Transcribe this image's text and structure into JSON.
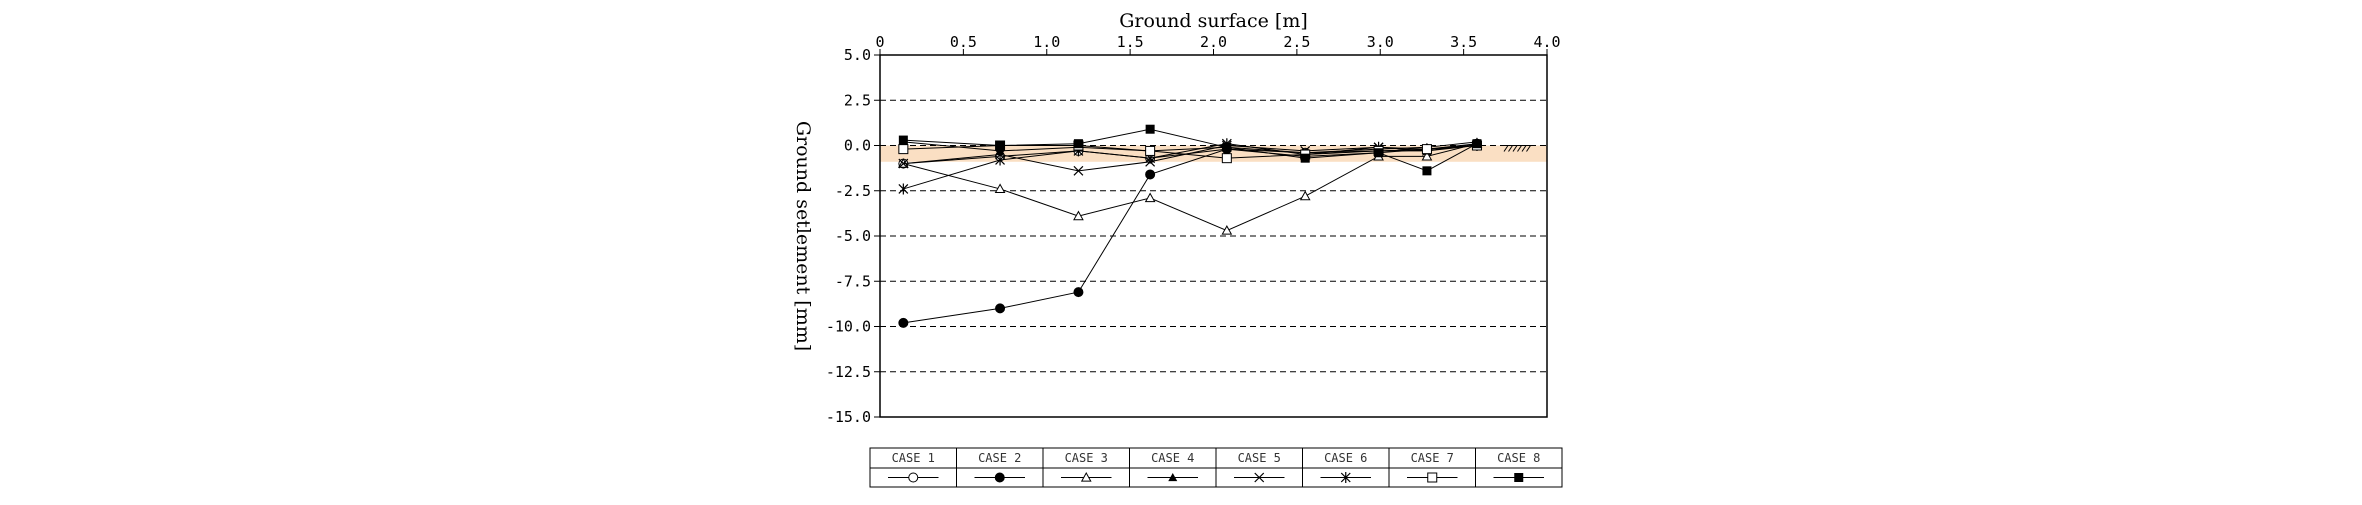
{
  "chart_data": {
    "type": "line",
    "xlabel": "Ground surface [m]",
    "ylabel": "Ground setlement [mm]",
    "xlim": [
      0,
      4.0
    ],
    "ylim": [
      -15.0,
      5.0
    ],
    "x_ticks": [
      "0",
      "0.5",
      "1.0",
      "1.5",
      "2.0",
      "2.5",
      "3.0",
      "3.5",
      "4.0"
    ],
    "y_ticks": [
      "5.0",
      "2.5",
      "0.0",
      "-2.5",
      "-5.0",
      "-7.5",
      "-10.0",
      "-12.5",
      "-15.0"
    ],
    "grid": "horizontal-dashed",
    "surface_fill": "#f9d9b8",
    "series": [
      {
        "name": "CASE 1",
        "marker": "open-circle",
        "x": [
          0.14,
          0.72,
          1.19,
          1.62,
          2.08,
          2.55,
          2.99,
          3.28,
          3.58
        ],
        "y": [
          -1.0,
          -0.6,
          -0.3,
          -0.7,
          -0.2,
          -0.4,
          -0.3,
          -0.3,
          0.1
        ]
      },
      {
        "name": "CASE 2",
        "marker": "filled-circle",
        "x": [
          0.14,
          0.72,
          1.19,
          1.62,
          2.08,
          2.55,
          2.99,
          3.28,
          3.58
        ],
        "y": [
          -9.8,
          -9.0,
          -8.1,
          -1.6,
          -0.2,
          -0.6,
          -0.4,
          -0.2,
          0.1
        ]
      },
      {
        "name": "CASE 3",
        "marker": "open-triangle",
        "x": [
          0.14,
          0.72,
          1.19,
          1.62,
          2.08,
          2.55,
          2.99,
          3.28,
          3.58
        ],
        "y": [
          -1.0,
          -2.4,
          -3.9,
          -2.9,
          -4.7,
          -2.8,
          -0.6,
          -0.6,
          0.1
        ]
      },
      {
        "name": "CASE 4",
        "marker": "filled-triangle",
        "x": [
          0.14,
          0.72,
          1.19,
          1.62,
          2.08,
          2.55,
          2.99,
          3.28,
          3.58
        ],
        "y": [
          0.2,
          -0.3,
          -0.1,
          -0.3,
          -0.1,
          -0.4,
          -0.2,
          -0.1,
          0.2
        ]
      },
      {
        "name": "CASE 5",
        "marker": "x",
        "x": [
          0.14,
          0.72,
          1.19,
          1.62,
          2.08,
          2.55,
          2.99,
          3.28,
          3.58
        ],
        "y": [
          -1.0,
          -0.5,
          -1.4,
          -0.9,
          0.0,
          -0.3,
          -0.1,
          -0.3,
          0.0
        ]
      },
      {
        "name": "CASE 6",
        "marker": "star",
        "x": [
          0.14,
          0.72,
          1.19,
          1.62,
          2.08,
          2.55,
          2.99,
          3.28,
          3.58
        ],
        "y": [
          -2.4,
          -0.8,
          -0.3,
          -0.7,
          0.1,
          -0.5,
          -0.1,
          -0.2,
          0.0
        ]
      },
      {
        "name": "CASE 7",
        "marker": "open-square",
        "x": [
          0.14,
          0.72,
          1.19,
          1.62,
          2.08,
          2.55,
          2.99,
          3.28,
          3.58
        ],
        "y": [
          -0.2,
          0.0,
          0.0,
          -0.3,
          -0.7,
          -0.5,
          -0.3,
          -0.2,
          0.0
        ]
      },
      {
        "name": "CASE 8",
        "marker": "filled-square",
        "x": [
          0.14,
          0.72,
          1.19,
          1.62,
          2.08,
          2.55,
          2.99,
          3.28,
          3.58
        ],
        "y": [
          0.3,
          0.0,
          0.1,
          0.9,
          -0.1,
          -0.7,
          -0.4,
          -1.4,
          0.1
        ]
      }
    ]
  }
}
